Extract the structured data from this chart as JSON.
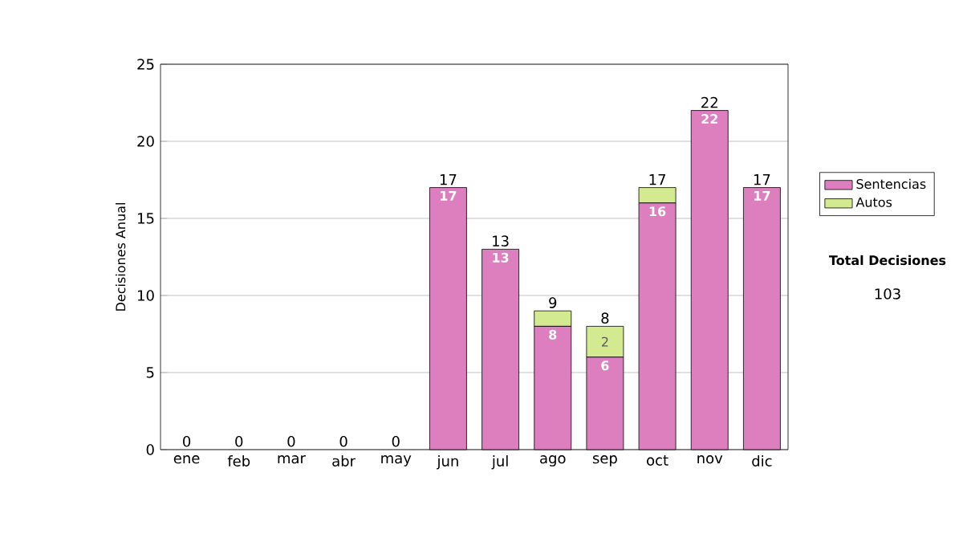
{
  "chart_data": {
    "type": "bar",
    "stacked": true,
    "ylabel": "Decisiones Anual",
    "categories": [
      "ene",
      "feb",
      "mar",
      "abr",
      "may",
      "jun",
      "jul",
      "ago",
      "sep",
      "oct",
      "nov",
      "dic"
    ],
    "series": [
      {
        "name": "Sentencias",
        "color": "#dd7fbf",
        "values": [
          0,
          0,
          0,
          0,
          0,
          17,
          13,
          8,
          6,
          16,
          22,
          17
        ],
        "value_labels": [
          null,
          null,
          null,
          null,
          null,
          "17",
          "13",
          "8",
          "6",
          "16",
          "22",
          "17"
        ]
      },
      {
        "name": "Autos",
        "color": "#d4ea90",
        "values": [
          0,
          0,
          0,
          0,
          0,
          0,
          0,
          1,
          2,
          1,
          0,
          0
        ],
        "value_labels": [
          null,
          null,
          null,
          null,
          null,
          null,
          null,
          null,
          "2",
          null,
          null,
          null
        ]
      }
    ],
    "totals": [
      "0",
      "0",
      "0",
      "0",
      "0",
      "17",
      "13",
      "9",
      "8",
      "17",
      "22",
      "17"
    ],
    "ylim": [
      0,
      25
    ],
    "yticks": [
      0,
      5,
      10,
      15,
      20,
      25
    ],
    "grid": "y",
    "legend": "right",
    "annotations": [
      "Total Decisiones",
      "103"
    ]
  }
}
